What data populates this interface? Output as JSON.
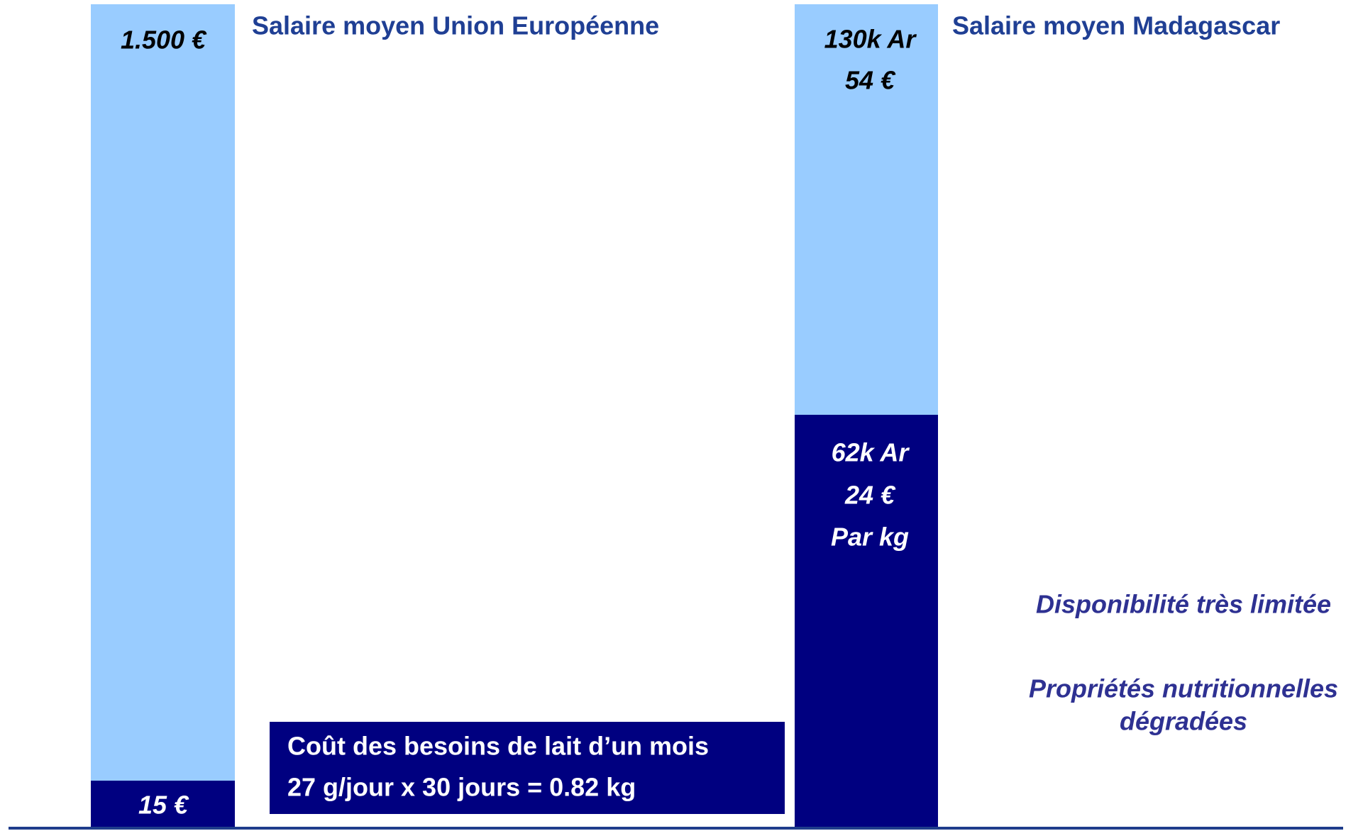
{
  "panels": [
    {
      "title": "Salaire moyen Union Européenne",
      "salary_labels": [
        "1.500 €"
      ],
      "cost_labels": [
        "15 €"
      ]
    },
    {
      "title": "Salaire moyen Madagascar",
      "salary_labels": [
        "130k Ar",
        "54 €"
      ],
      "cost_labels": [
        "62k Ar",
        "24 €",
        "Par kg"
      ]
    }
  ],
  "box": {
    "lines": [
      "Coût des besoins de lait d’un mois",
      "27 g/jour x 30 jours = 0.82 kg"
    ]
  },
  "notes": [
    [
      "Disponibilité très limitée"
    ],
    [
      "Propriétés nutritionnelles",
      "dégradées"
    ]
  ]
}
